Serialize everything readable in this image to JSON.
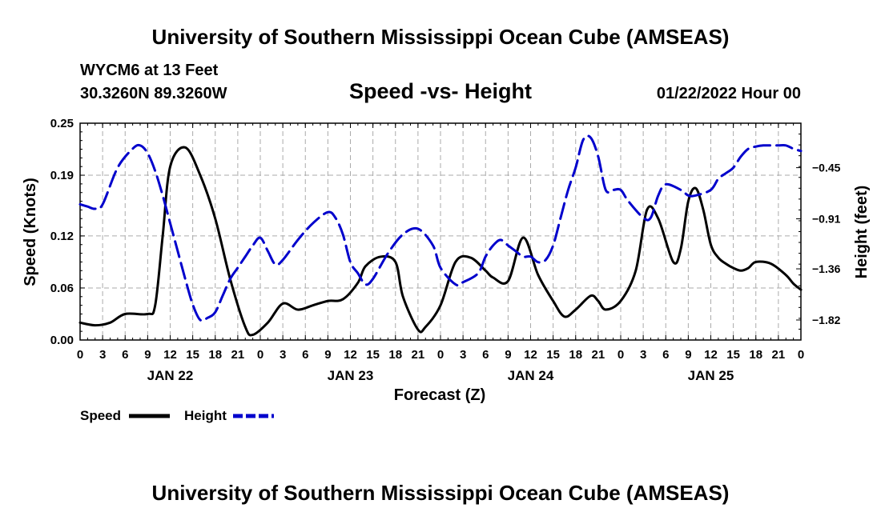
{
  "header": {
    "title": "University of Southern Mississippi Ocean Cube (AMSEAS)",
    "station": "WYCM6 at 13 Feet",
    "location": "30.3260N  89.3260W",
    "date": "01/22/2022 Hour 00"
  },
  "footer": {
    "title": "University of Southern Mississippi Ocean Cube (AMSEAS)"
  },
  "colors": {
    "speed": "#000000",
    "height": "#0000cc",
    "grid": "#aaaaaa"
  },
  "chart_data": {
    "type": "line",
    "title": "Speed -vs- Height",
    "xlabel": "Forecast (Z)",
    "ylabel": "Speed (Knots)",
    "y2label": "Height (feet)",
    "xlim": [
      0,
      96
    ],
    "ylim": [
      0,
      0.25
    ],
    "y2lim": [
      -2.0,
      -0.05
    ],
    "x_tick_labels": [
      "0",
      "3",
      "6",
      "9",
      "12",
      "15",
      "18",
      "21",
      "0",
      "3",
      "6",
      "9",
      "12",
      "15",
      "18",
      "21",
      "0",
      "3",
      "6",
      "9",
      "12",
      "15",
      "18",
      "21",
      "0",
      "3",
      "6",
      "9",
      "12",
      "15",
      "18",
      "21",
      "0"
    ],
    "y_ticks": [
      0.0,
      0.06,
      0.12,
      0.19,
      0.25
    ],
    "y_tick_labels": [
      "0.00",
      "0.06",
      "0.12",
      "0.19",
      "0.25"
    ],
    "y2_ticks": [
      -1.82,
      -1.36,
      -0.91,
      -0.45
    ],
    "y2_tick_labels": [
      "-1.82",
      "-1.36",
      "-0.91",
      "-0.45"
    ],
    "date_labels": [
      {
        "x": 12,
        "label": "JAN 22"
      },
      {
        "x": 36,
        "label": "JAN 23"
      },
      {
        "x": 60,
        "label": "JAN 24"
      },
      {
        "x": 84,
        "label": "JAN 25"
      }
    ],
    "legend": [
      {
        "name": "Speed",
        "style": "solid"
      },
      {
        "name": "Height",
        "style": "dashed"
      }
    ],
    "series": [
      {
        "name": "Speed",
        "axis": "left",
        "x": [
          0,
          2,
          4,
          6,
          9,
          10,
          11,
          12,
          14,
          16,
          18,
          20,
          22,
          23,
          25,
          27,
          29,
          31,
          33,
          35,
          37,
          38,
          40,
          42,
          43,
          45,
          46,
          48,
          50,
          52,
          54,
          55,
          57,
          59,
          61,
          63,
          64.5,
          66,
          68,
          69,
          70,
          72,
          74,
          75.5,
          77,
          79,
          80,
          81,
          82,
          83,
          84,
          85,
          86,
          87,
          88,
          89,
          90,
          92,
          94,
          95,
          96
        ],
        "y": [
          0.02,
          0.017,
          0.02,
          0.03,
          0.03,
          0.04,
          0.12,
          0.2,
          0.222,
          0.19,
          0.14,
          0.07,
          0.015,
          0.006,
          0.02,
          0.042,
          0.035,
          0.04,
          0.045,
          0.047,
          0.066,
          0.085,
          0.096,
          0.09,
          0.05,
          0.012,
          0.015,
          0.04,
          0.09,
          0.095,
          0.08,
          0.072,
          0.068,
          0.118,
          0.075,
          0.045,
          0.027,
          0.035,
          0.051,
          0.045,
          0.035,
          0.045,
          0.08,
          0.15,
          0.14,
          0.09,
          0.105,
          0.16,
          0.175,
          0.15,
          0.11,
          0.095,
          0.088,
          0.083,
          0.08,
          0.083,
          0.09,
          0.088,
          0.075,
          0.065,
          0.058
        ]
      },
      {
        "name": "Height",
        "axis": "right",
        "x": [
          0,
          1,
          2,
          3,
          5,
          7,
          8,
          9,
          10,
          11,
          12,
          13,
          14,
          15,
          16,
          17,
          18,
          19,
          20,
          21,
          22,
          23,
          24,
          25,
          26,
          27,
          29,
          31,
          33,
          34,
          35,
          36,
          37,
          38,
          39,
          41,
          43,
          45,
          47,
          48,
          50,
          51,
          53,
          54,
          55,
          56,
          57,
          58,
          59,
          60,
          61,
          62,
          63,
          64,
          65,
          66,
          67,
          68,
          69,
          70,
          71,
          72,
          73,
          75,
          76,
          77,
          78,
          80,
          81,
          82,
          84,
          85,
          86,
          87,
          88,
          89,
          90,
          91,
          92,
          93,
          94,
          95,
          96
        ],
        "y": [
          -0.78,
          -0.8,
          -0.82,
          -0.78,
          -0.45,
          -0.28,
          -0.25,
          -0.32,
          -0.48,
          -0.7,
          -0.95,
          -1.2,
          -1.45,
          -1.68,
          -1.82,
          -1.8,
          -1.75,
          -1.6,
          -1.45,
          -1.35,
          -1.25,
          -1.15,
          -1.08,
          -1.2,
          -1.32,
          -1.28,
          -1.1,
          -0.95,
          -0.85,
          -0.9,
          -1.05,
          -1.3,
          -1.4,
          -1.5,
          -1.45,
          -1.22,
          -1.05,
          -1.0,
          -1.15,
          -1.35,
          -1.5,
          -1.48,
          -1.4,
          -1.25,
          -1.15,
          -1.1,
          -1.15,
          -1.2,
          -1.25,
          -1.25,
          -1.3,
          -1.28,
          -1.15,
          -0.9,
          -0.65,
          -0.45,
          -0.2,
          -0.18,
          -0.35,
          -0.65,
          -0.65,
          -0.65,
          -0.75,
          -0.9,
          -0.9,
          -0.7,
          -0.6,
          -0.65,
          -0.7,
          -0.7,
          -0.65,
          -0.55,
          -0.5,
          -0.45,
          -0.35,
          -0.28,
          -0.26,
          -0.25,
          -0.25,
          -0.25,
          -0.25,
          -0.28,
          -0.3
        ]
      }
    ]
  }
}
